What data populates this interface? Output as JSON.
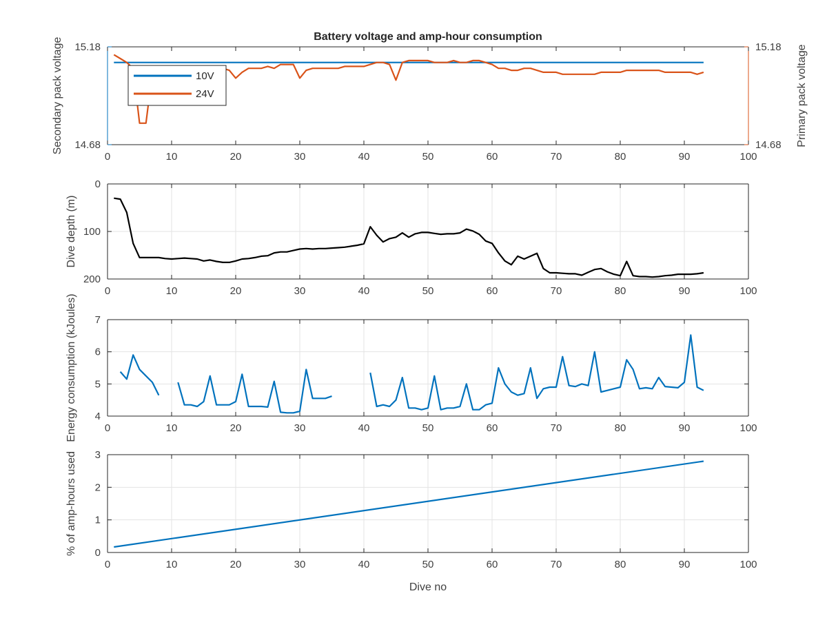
{
  "chart_data": [
    {
      "type": "line",
      "title": "Battery voltage and amp-hour consumption",
      "ylabel_left": "Secondary pack voltage",
      "ylabel_right": "Primary pack voltage",
      "xlim": [
        0,
        100
      ],
      "xticks": [
        0,
        10,
        20,
        30,
        40,
        50,
        60,
        70,
        80,
        90,
        100
      ],
      "ylim": [
        14.68,
        15.18
      ],
      "yticks": [
        14.68,
        15.18
      ],
      "ytick_labels": [
        "14.68",
        "15.18"
      ],
      "grid": false,
      "legend_position": "top-left",
      "series": [
        {
          "name": "10V",
          "axis": "left",
          "color": "#0072BD",
          "x": [
            1,
            93
          ],
          "y": [
            15.1,
            15.1
          ]
        },
        {
          "name": "24V",
          "axis": "right",
          "color": "#D95319",
          "x": [
            1,
            2,
            3,
            4,
            5,
            6,
            7,
            8,
            9,
            10,
            11,
            12,
            13,
            14,
            15,
            16,
            17,
            18,
            19,
            20,
            21,
            22,
            23,
            24,
            25,
            26,
            27,
            28,
            29,
            30,
            31,
            32,
            33,
            34,
            35,
            36,
            37,
            38,
            39,
            40,
            41,
            42,
            43,
            44,
            45,
            46,
            47,
            48,
            49,
            50,
            51,
            52,
            53,
            54,
            55,
            56,
            57,
            58,
            59,
            60,
            61,
            62,
            63,
            64,
            65,
            66,
            67,
            68,
            69,
            70,
            71,
            72,
            73,
            74,
            75,
            76,
            77,
            78,
            79,
            80,
            81,
            82,
            83,
            84,
            85,
            86,
            87,
            88,
            89,
            90,
            91,
            92,
            93
          ],
          "y": [
            15.14,
            15.12,
            15.1,
            15.07,
            14.79,
            14.79,
            15.05,
            15.06,
            15.06,
            15.06,
            15.06,
            15.06,
            15.06,
            15.07,
            15.07,
            15.07,
            15.07,
            15.07,
            15.06,
            15.02,
            15.05,
            15.07,
            15.07,
            15.07,
            15.08,
            15.07,
            15.09,
            15.09,
            15.09,
            15.02,
            15.06,
            15.07,
            15.07,
            15.07,
            15.07,
            15.07,
            15.08,
            15.08,
            15.08,
            15.08,
            15.09,
            15.1,
            15.1,
            15.09,
            15.01,
            15.1,
            15.11,
            15.11,
            15.11,
            15.11,
            15.1,
            15.1,
            15.1,
            15.11,
            15.1,
            15.1,
            15.11,
            15.11,
            15.1,
            15.09,
            15.07,
            15.07,
            15.06,
            15.06,
            15.07,
            15.07,
            15.06,
            15.05,
            15.05,
            15.05,
            15.04,
            15.04,
            15.04,
            15.04,
            15.04,
            15.04,
            15.05,
            15.05,
            15.05,
            15.05,
            15.06,
            15.06,
            15.06,
            15.06,
            15.06,
            15.06,
            15.05,
            15.05,
            15.05,
            15.05,
            15.05,
            15.04,
            15.05
          ]
        }
      ]
    },
    {
      "type": "line",
      "ylabel": "Dive depth (m)",
      "xlim": [
        0,
        100
      ],
      "xticks": [
        0,
        10,
        20,
        30,
        40,
        50,
        60,
        70,
        80,
        90,
        100
      ],
      "ylim": [
        0,
        200
      ],
      "yticks": [
        0,
        100,
        200
      ],
      "y_reversed": true,
      "grid": true,
      "series": [
        {
          "color": "#000000",
          "x": [
            1,
            2,
            3,
            4,
            5,
            6,
            7,
            8,
            9,
            10,
            11,
            12,
            13,
            14,
            15,
            16,
            17,
            18,
            19,
            20,
            21,
            22,
            23,
            24,
            25,
            26,
            27,
            28,
            29,
            30,
            31,
            32,
            33,
            34,
            35,
            36,
            37,
            38,
            39,
            40,
            41,
            42,
            43,
            44,
            45,
            46,
            47,
            48,
            49,
            50,
            51,
            52,
            53,
            54,
            55,
            56,
            57,
            58,
            59,
            60,
            61,
            62,
            63,
            64,
            65,
            66,
            67,
            68,
            69,
            70,
            71,
            72,
            73,
            74,
            75,
            76,
            77,
            78,
            79,
            80,
            81,
            82,
            83,
            84,
            85,
            86,
            87,
            88,
            89,
            90,
            91,
            92,
            93
          ],
          "y": [
            30,
            32,
            60,
            125,
            155,
            155,
            155,
            155,
            157,
            158,
            157,
            156,
            157,
            158,
            162,
            160,
            163,
            165,
            165,
            162,
            158,
            157,
            155,
            152,
            151,
            145,
            143,
            143,
            140,
            137,
            136,
            137,
            136,
            136,
            135,
            134,
            133,
            131,
            129,
            126,
            90,
            108,
            122,
            115,
            112,
            103,
            112,
            105,
            102,
            102,
            104,
            106,
            105,
            105,
            103,
            95,
            99,
            106,
            120,
            125,
            145,
            162,
            170,
            152,
            158,
            152,
            146,
            178,
            187,
            187,
            188,
            189,
            189,
            192,
            186,
            180,
            178,
            185,
            190,
            193,
            163,
            193,
            195,
            195,
            196,
            195,
            193,
            192,
            190,
            190,
            190,
            189,
            187
          ]
        }
      ]
    },
    {
      "type": "line",
      "ylabel": "Energy consumption (kJoules)",
      "xlim": [
        0,
        100
      ],
      "xticks": [
        0,
        10,
        20,
        30,
        40,
        50,
        60,
        70,
        80,
        90,
        100
      ],
      "ylim": [
        4,
        7
      ],
      "yticks": [
        4,
        5,
        6,
        7
      ],
      "grid": true,
      "series": [
        {
          "color": "#0072BD",
          "x": [
            2,
            3,
            4,
            5,
            6,
            7,
            8,
            null,
            11,
            12,
            13,
            14,
            15,
            16,
            17,
            18,
            19,
            20,
            21,
            22,
            23,
            24,
            25,
            26,
            27,
            28,
            29,
            30,
            31,
            32,
            33,
            34,
            35,
            null,
            41,
            42,
            43,
            44,
            45,
            46,
            47,
            48,
            49,
            50,
            51,
            52,
            53,
            54,
            55,
            56,
            57,
            58,
            59,
            60,
            61,
            62,
            63,
            64,
            65,
            66,
            67,
            68,
            69,
            70,
            71,
            72,
            73,
            74,
            75,
            76,
            77,
            78,
            79,
            80,
            81,
            82,
            83,
            84,
            85,
            86,
            87,
            88,
            89,
            90,
            91,
            92,
            93
          ],
          "y": [
            5.38,
            5.15,
            5.9,
            5.45,
            5.25,
            5.05,
            4.65,
            null,
            5.05,
            4.35,
            4.35,
            4.3,
            4.45,
            5.25,
            4.35,
            4.35,
            4.35,
            4.45,
            5.3,
            4.3,
            4.3,
            4.3,
            4.28,
            5.08,
            4.12,
            4.1,
            4.1,
            4.15,
            5.45,
            4.55,
            4.55,
            4.55,
            4.62,
            null,
            5.35,
            4.3,
            4.35,
            4.3,
            4.5,
            5.2,
            4.25,
            4.25,
            4.2,
            4.25,
            5.25,
            4.2,
            4.25,
            4.25,
            4.3,
            5.0,
            4.2,
            4.2,
            4.35,
            4.4,
            5.5,
            5.0,
            4.75,
            4.65,
            4.7,
            5.5,
            4.55,
            4.85,
            4.9,
            4.9,
            5.85,
            4.95,
            4.92,
            5.0,
            4.95,
            6.0,
            4.75,
            4.8,
            4.85,
            4.9,
            5.75,
            5.45,
            4.85,
            4.88,
            4.85,
            5.2,
            4.92,
            4.9,
            4.88,
            5.05,
            6.52,
            4.9,
            4.8
          ]
        }
      ]
    },
    {
      "type": "line",
      "ylabel": "% of amp-hours used",
      "xlabel": "Dive no",
      "xlim": [
        0,
        100
      ],
      "xticks": [
        0,
        10,
        20,
        30,
        40,
        50,
        60,
        70,
        80,
        90,
        100
      ],
      "ylim": [
        0,
        3
      ],
      "yticks": [
        0,
        1,
        2,
        3
      ],
      "grid": true,
      "series": [
        {
          "color": "#0072BD",
          "x": [
            1,
            93
          ],
          "y": [
            0.17,
            2.8
          ]
        }
      ]
    }
  ]
}
